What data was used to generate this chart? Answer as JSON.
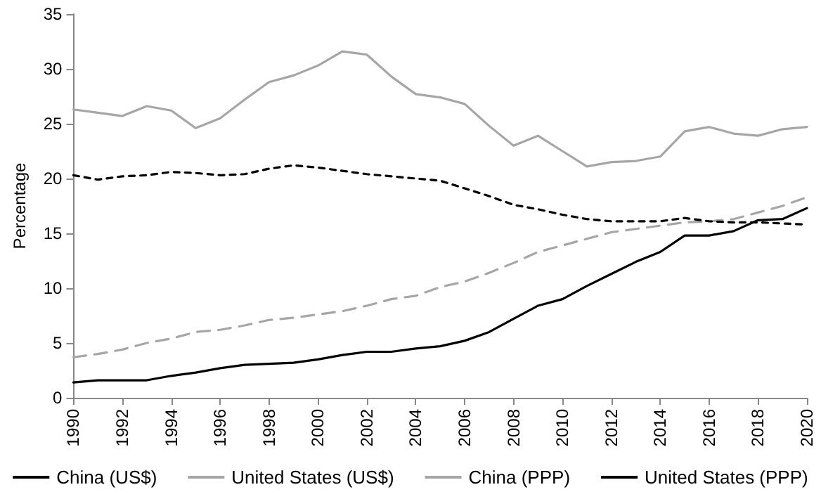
{
  "chart_data": {
    "type": "line",
    "ylabel": "Percentage",
    "categories": [
      "1990",
      null,
      "1992",
      null,
      "1994",
      null,
      "1996",
      null,
      "1998",
      null,
      "2000",
      null,
      "2002",
      null,
      "2004",
      null,
      "2006",
      null,
      "2008",
      null,
      "2010",
      null,
      "2012",
      null,
      "2014",
      null,
      "2016",
      null,
      "2018",
      null,
      "2020"
    ],
    "series": [
      {
        "name": "China (US$)",
        "color": "#000000",
        "line_style": "solid",
        "values": [
          1.4,
          1.6,
          1.6,
          1.6,
          2.0,
          2.3,
          2.7,
          3.0,
          3.1,
          3.2,
          3.5,
          3.9,
          4.2,
          4.2,
          4.5,
          4.7,
          5.2,
          6.0,
          7.2,
          8.4,
          9.0,
          10.2,
          11.3,
          12.4,
          13.3,
          14.8,
          14.8,
          15.2,
          16.2,
          16.3,
          17.3
        ]
      },
      {
        "name": "United States (US$)",
        "color": "#a6a6a6",
        "line_style": "solid",
        "values": [
          26.3,
          26.0,
          25.7,
          26.6,
          26.2,
          24.6,
          25.5,
          27.2,
          28.8,
          29.4,
          30.3,
          31.6,
          31.3,
          29.3,
          27.7,
          27.4,
          26.8,
          24.8,
          23.0,
          23.9,
          22.5,
          21.1,
          21.5,
          21.6,
          22.0,
          24.3,
          24.7,
          24.1,
          23.9,
          24.5,
          24.7
        ]
      },
      {
        "name": "China (PPP)",
        "color": "#a6a6a6",
        "line_style": "dashed",
        "values": [
          3.7,
          4.0,
          4.4,
          5.0,
          5.4,
          6.0,
          6.2,
          6.6,
          7.1,
          7.3,
          7.6,
          7.9,
          8.4,
          9.0,
          9.3,
          10.1,
          10.6,
          11.4,
          12.3,
          13.3,
          13.9,
          14.5,
          15.1,
          15.4,
          15.7,
          16.0,
          16.1,
          16.3,
          16.9,
          17.5,
          18.3
        ]
      },
      {
        "name": "United States (PPP)",
        "color": "#000000",
        "line_style": "dotted",
        "values": [
          20.3,
          19.9,
          20.2,
          20.3,
          20.6,
          20.5,
          20.3,
          20.4,
          20.9,
          21.2,
          21.0,
          20.7,
          20.4,
          20.2,
          20.0,
          19.8,
          19.1,
          18.4,
          17.6,
          17.2,
          16.7,
          16.3,
          16.1,
          16.1,
          16.1,
          16.4,
          16.1,
          16.0,
          16.0,
          15.9,
          15.8
        ]
      }
    ],
    "ylim": [
      0,
      35
    ],
    "yticks": [
      0,
      5,
      10,
      15,
      20,
      25,
      30,
      35
    ],
    "grid": false,
    "legend": "bottom",
    "marker": "none"
  }
}
